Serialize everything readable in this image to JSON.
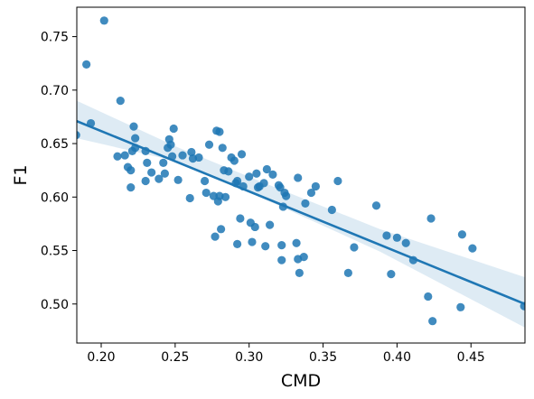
{
  "chart_data": {
    "type": "scatter",
    "title": "",
    "xlabel": "CMD",
    "ylabel": "F1",
    "xlim": [
      0.1835,
      0.4865
    ],
    "ylim": [
      0.4635,
      0.7775
    ],
    "xticks": [
      0.2,
      0.25,
      0.3,
      0.35,
      0.4,
      0.45
    ],
    "xtick_labels": [
      "0.20",
      "0.25",
      "0.30",
      "0.35",
      "0.40",
      "0.45"
    ],
    "yticks": [
      0.5,
      0.55,
      0.6,
      0.65,
      0.7,
      0.75
    ],
    "ytick_labels": [
      "0.50",
      "0.55",
      "0.60",
      "0.65",
      "0.70",
      "0.75"
    ],
    "grid": false,
    "legend": "none",
    "colors": {
      "points": "#1f77b4",
      "line": "#1f77b4",
      "band": "#1f77b4"
    },
    "regression": {
      "x": [
        0.1835,
        0.4865
      ],
      "y": [
        0.671,
        0.5
      ]
    },
    "confidence_band": {
      "x": [
        0.1835,
        0.2525,
        0.3105,
        0.3885,
        0.4865
      ],
      "upper": [
        0.69,
        0.646,
        0.613,
        0.57,
        0.525
      ],
      "lower": [
        0.655,
        0.633,
        0.598,
        0.549,
        0.478
      ]
    },
    "points": [
      {
        "x": 0.183,
        "y": 0.658
      },
      {
        "x": 0.19,
        "y": 0.724
      },
      {
        "x": 0.193,
        "y": 0.669
      },
      {
        "x": 0.202,
        "y": 0.765
      },
      {
        "x": 0.211,
        "y": 0.638
      },
      {
        "x": 0.213,
        "y": 0.69
      },
      {
        "x": 0.216,
        "y": 0.639
      },
      {
        "x": 0.218,
        "y": 0.628
      },
      {
        "x": 0.22,
        "y": 0.609
      },
      {
        "x": 0.22,
        "y": 0.625
      },
      {
        "x": 0.221,
        "y": 0.643
      },
      {
        "x": 0.222,
        "y": 0.666
      },
      {
        "x": 0.223,
        "y": 0.655
      },
      {
        "x": 0.223,
        "y": 0.646
      },
      {
        "x": 0.23,
        "y": 0.615
      },
      {
        "x": 0.23,
        "y": 0.643
      },
      {
        "x": 0.231,
        "y": 0.632
      },
      {
        "x": 0.234,
        "y": 0.623
      },
      {
        "x": 0.239,
        "y": 0.617
      },
      {
        "x": 0.242,
        "y": 0.632
      },
      {
        "x": 0.243,
        "y": 0.622
      },
      {
        "x": 0.245,
        "y": 0.646
      },
      {
        "x": 0.246,
        "y": 0.654
      },
      {
        "x": 0.247,
        "y": 0.649
      },
      {
        "x": 0.248,
        "y": 0.638
      },
      {
        "x": 0.249,
        "y": 0.664
      },
      {
        "x": 0.252,
        "y": 0.616
      },
      {
        "x": 0.255,
        "y": 0.639
      },
      {
        "x": 0.26,
        "y": 0.599
      },
      {
        "x": 0.261,
        "y": 0.642
      },
      {
        "x": 0.262,
        "y": 0.636
      },
      {
        "x": 0.266,
        "y": 0.637
      },
      {
        "x": 0.27,
        "y": 0.615
      },
      {
        "x": 0.271,
        "y": 0.604
      },
      {
        "x": 0.273,
        "y": 0.649
      },
      {
        "x": 0.276,
        "y": 0.601
      },
      {
        "x": 0.277,
        "y": 0.563
      },
      {
        "x": 0.278,
        "y": 0.662
      },
      {
        "x": 0.279,
        "y": 0.596
      },
      {
        "x": 0.28,
        "y": 0.661
      },
      {
        "x": 0.28,
        "y": 0.601
      },
      {
        "x": 0.281,
        "y": 0.57
      },
      {
        "x": 0.282,
        "y": 0.646
      },
      {
        "x": 0.283,
        "y": 0.625
      },
      {
        "x": 0.284,
        "y": 0.6
      },
      {
        "x": 0.286,
        "y": 0.624
      },
      {
        "x": 0.288,
        "y": 0.637
      },
      {
        "x": 0.29,
        "y": 0.634
      },
      {
        "x": 0.291,
        "y": 0.613
      },
      {
        "x": 0.292,
        "y": 0.615
      },
      {
        "x": 0.292,
        "y": 0.556
      },
      {
        "x": 0.294,
        "y": 0.58
      },
      {
        "x": 0.295,
        "y": 0.64
      },
      {
        "x": 0.296,
        "y": 0.61
      },
      {
        "x": 0.3,
        "y": 0.619
      },
      {
        "x": 0.301,
        "y": 0.576
      },
      {
        "x": 0.302,
        "y": 0.558
      },
      {
        "x": 0.304,
        "y": 0.572
      },
      {
        "x": 0.305,
        "y": 0.622
      },
      {
        "x": 0.306,
        "y": 0.609
      },
      {
        "x": 0.307,
        "y": 0.61
      },
      {
        "x": 0.31,
        "y": 0.613
      },
      {
        "x": 0.311,
        "y": 0.554
      },
      {
        "x": 0.312,
        "y": 0.626
      },
      {
        "x": 0.314,
        "y": 0.574
      },
      {
        "x": 0.316,
        "y": 0.621
      },
      {
        "x": 0.32,
        "y": 0.611
      },
      {
        "x": 0.321,
        "y": 0.609
      },
      {
        "x": 0.322,
        "y": 0.555
      },
      {
        "x": 0.322,
        "y": 0.541
      },
      {
        "x": 0.323,
        "y": 0.591
      },
      {
        "x": 0.324,
        "y": 0.604
      },
      {
        "x": 0.325,
        "y": 0.601
      },
      {
        "x": 0.332,
        "y": 0.557
      },
      {
        "x": 0.333,
        "y": 0.618
      },
      {
        "x": 0.333,
        "y": 0.542
      },
      {
        "x": 0.334,
        "y": 0.529
      },
      {
        "x": 0.337,
        "y": 0.544
      },
      {
        "x": 0.338,
        "y": 0.594
      },
      {
        "x": 0.342,
        "y": 0.604
      },
      {
        "x": 0.345,
        "y": 0.61
      },
      {
        "x": 0.356,
        "y": 0.588
      },
      {
        "x": 0.36,
        "y": 0.615
      },
      {
        "x": 0.367,
        "y": 0.529
      },
      {
        "x": 0.371,
        "y": 0.553
      },
      {
        "x": 0.386,
        "y": 0.592
      },
      {
        "x": 0.393,
        "y": 0.564
      },
      {
        "x": 0.396,
        "y": 0.528
      },
      {
        "x": 0.4,
        "y": 0.562
      },
      {
        "x": 0.406,
        "y": 0.557
      },
      {
        "x": 0.411,
        "y": 0.541
      },
      {
        "x": 0.421,
        "y": 0.507
      },
      {
        "x": 0.423,
        "y": 0.58
      },
      {
        "x": 0.424,
        "y": 0.484
      },
      {
        "x": 0.443,
        "y": 0.497
      },
      {
        "x": 0.444,
        "y": 0.565
      },
      {
        "x": 0.451,
        "y": 0.552
      },
      {
        "x": 0.486,
        "y": 0.498
      }
    ]
  }
}
